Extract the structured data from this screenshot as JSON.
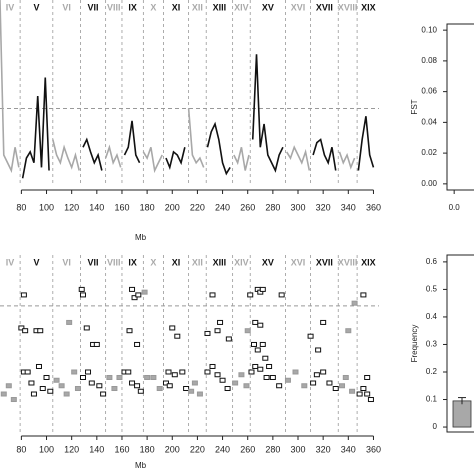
{
  "chart_data": [
    {
      "type": "line",
      "xlabel": "Mb",
      "xlim": [
        63,
        366
      ],
      "xticks": [
        80,
        100,
        120,
        140,
        160,
        180,
        200,
        220,
        240,
        260,
        280,
        300,
        320,
        340,
        360
      ],
      "ylim": [
        0,
        0.12
      ],
      "threshold": 0.05,
      "chromosomes": [
        {
          "label": "IV",
          "start": 60,
          "end": 79,
          "color": "#a8a8a8"
        },
        {
          "label": "V",
          "start": 79,
          "end": 105,
          "color": "#111111"
        },
        {
          "label": "VI",
          "start": 105,
          "end": 127,
          "color": "#a8a8a8"
        },
        {
          "label": "VII",
          "start": 127,
          "end": 147,
          "color": "#111111"
        },
        {
          "label": "VIII",
          "start": 147,
          "end": 160,
          "color": "#a8a8a8"
        },
        {
          "label": "IX",
          "start": 160,
          "end": 177,
          "color": "#111111"
        },
        {
          "label": "X",
          "start": 177,
          "end": 193,
          "color": "#a8a8a8"
        },
        {
          "label": "XI",
          "start": 193,
          "end": 213,
          "color": "#111111"
        },
        {
          "label": "XII",
          "start": 213,
          "end": 227,
          "color": "#a8a8a8"
        },
        {
          "label": "XIII",
          "start": 227,
          "end": 248,
          "color": "#111111"
        },
        {
          "label": "XIV",
          "start": 248,
          "end": 262,
          "color": "#a8a8a8"
        },
        {
          "label": "XV",
          "start": 262,
          "end": 290,
          "color": "#111111"
        },
        {
          "label": "XVI",
          "start": 290,
          "end": 310,
          "color": "#a8a8a8"
        },
        {
          "label": "XVII",
          "start": 310,
          "end": 332,
          "color": "#111111"
        },
        {
          "label": "XVIII",
          "start": 332,
          "end": 347,
          "color": "#a8a8a8"
        },
        {
          "label": "XIX",
          "start": 347,
          "end": 365,
          "color": "#111111"
        }
      ],
      "x": [
        63,
        66,
        69,
        72,
        75,
        78,
        81,
        84,
        87,
        90,
        93,
        96,
        99,
        102,
        105,
        108,
        111,
        114,
        117,
        120,
        123,
        126,
        129,
        132,
        135,
        138,
        141,
        144,
        147,
        150,
        153,
        156,
        159,
        162,
        165,
        168,
        171,
        174,
        177,
        180,
        183,
        186,
        189,
        192,
        195,
        198,
        201,
        204,
        207,
        210,
        213,
        216,
        219,
        222,
        225,
        228,
        231,
        234,
        237,
        240,
        243,
        246,
        249,
        252,
        255,
        258,
        261,
        264,
        267,
        270,
        273,
        276,
        279,
        282,
        285,
        288,
        291,
        294,
        297,
        300,
        303,
        306,
        309,
        312,
        315,
        318,
        321,
        324,
        327,
        330,
        333,
        336,
        339,
        342,
        345,
        348,
        351,
        354,
        357,
        360
      ],
      "values": [
        0.12,
        0.02,
        0.015,
        0.01,
        0.025,
        0.012,
        0.005,
        0.018,
        0.022,
        0.015,
        0.058,
        0.012,
        0.07,
        0.01,
        0.03,
        0.02,
        0.015,
        0.025,
        0.018,
        0.012,
        0.02,
        0.01,
        0.025,
        0.03,
        0.022,
        0.015,
        0.02,
        0.01,
        0.018,
        0.025,
        0.015,
        0.02,
        0.012,
        0.02,
        0.025,
        0.042,
        0.02,
        0.015,
        0.022,
        0.018,
        0.025,
        0.01,
        0.015,
        0.02,
        0.018,
        0.012,
        0.022,
        0.02,
        0.015,
        0.025,
        0.05,
        0.02,
        0.015,
        0.018,
        0.012,
        0.025,
        0.035,
        0.04,
        0.03,
        0.015,
        0.008,
        0.012,
        0.02,
        0.015,
        0.025,
        0.01,
        0.02,
        0.03,
        0.085,
        0.025,
        0.04,
        0.02,
        0.015,
        0.01,
        0.02,
        0.025,
        0.022,
        0.018,
        0.025,
        0.02,
        0.015,
        0.022,
        0.01,
        0.02,
        0.028,
        0.03,
        0.02,
        0.015,
        0.025,
        0.01,
        0.022,
        0.015,
        0.02,
        0.012,
        0.018,
        0.01,
        0.03,
        0.045,
        0.02,
        0.012
      ]
    },
    {
      "type": "scatter",
      "ylabel": "FST",
      "xlim": [
        -0.01,
        0.05
      ],
      "xticks": [
        {
          "value": 0,
          "label": "0.0"
        }
      ],
      "ylim": [
        -0.004,
        0.104
      ],
      "yticks": [
        {
          "value": 0,
          "label": "0.00"
        },
        {
          "value": 0.02,
          "label": "0.02"
        },
        {
          "value": 0.04,
          "label": "0.04"
        },
        {
          "value": 0.06,
          "label": "0.06"
        },
        {
          "value": 0.08,
          "label": "0.08"
        },
        {
          "value": 0.1,
          "label": "0.10"
        }
      ],
      "x": [],
      "y": []
    },
    {
      "type": "scatter",
      "xlabel": "Mb",
      "xlim": [
        63,
        366
      ],
      "xticks": [
        80,
        100,
        120,
        140,
        160,
        180,
        200,
        220,
        240,
        260,
        280,
        300,
        320,
        340,
        360
      ],
      "ylim": [
        -0.018,
        0.625
      ],
      "threshold": 0.44,
      "chromosomes": [
        {
          "label": "IV",
          "start": 60,
          "end": 79,
          "color": "#a8a8a8"
        },
        {
          "label": "V",
          "start": 79,
          "end": 105,
          "color": "#111111"
        },
        {
          "label": "VI",
          "start": 105,
          "end": 127,
          "color": "#a8a8a8"
        },
        {
          "label": "VII",
          "start": 127,
          "end": 147,
          "color": "#111111"
        },
        {
          "label": "VIII",
          "start": 147,
          "end": 160,
          "color": "#a8a8a8"
        },
        {
          "label": "IX",
          "start": 160,
          "end": 177,
          "color": "#111111"
        },
        {
          "label": "X",
          "start": 177,
          "end": 193,
          "color": "#a8a8a8"
        },
        {
          "label": "XI",
          "start": 193,
          "end": 213,
          "color": "#111111"
        },
        {
          "label": "XII",
          "start": 213,
          "end": 227,
          "color": "#a8a8a8"
        },
        {
          "label": "XIII",
          "start": 227,
          "end": 248,
          "color": "#111111"
        },
        {
          "label": "XIV",
          "start": 248,
          "end": 262,
          "color": "#a8a8a8"
        },
        {
          "label": "XV",
          "start": 262,
          "end": 290,
          "color": "#111111"
        },
        {
          "label": "XVI",
          "start": 290,
          "end": 310,
          "color": "#a8a8a8"
        },
        {
          "label": "XVII",
          "start": 310,
          "end": 332,
          "color": "#111111"
        },
        {
          "label": "XVIII",
          "start": 332,
          "end": 347,
          "color": "#a8a8a8"
        },
        {
          "label": "XIX",
          "start": 347,
          "end": 365,
          "color": "#111111"
        }
      ],
      "x": [
        82,
        80,
        83,
        92,
        95,
        128,
        129,
        137,
        140,
        132,
        118,
        168,
        170,
        173,
        166,
        172,
        178,
        200,
        204,
        197,
        232,
        236,
        238,
        228,
        245,
        262,
        268,
        270,
        272,
        266,
        270,
        272,
        265,
        268,
        274,
        277,
        260,
        287,
        310,
        320,
        316,
        345,
        340,
        352,
        355,
        66,
        70,
        74,
        82,
        85,
        88,
        90,
        94,
        97,
        100,
        103,
        108,
        112,
        116,
        122,
        125,
        129,
        133,
        136,
        142,
        145,
        150,
        154,
        158,
        162,
        165,
        168,
        172,
        175,
        180,
        185,
        190,
        195,
        198,
        202,
        208,
        211,
        215,
        218,
        222,
        228,
        232,
        236,
        240,
        244,
        250,
        255,
        259,
        263,
        266,
        270,
        275,
        280,
        285,
        292,
        298,
        305,
        312,
        315,
        320,
        325,
        330,
        335,
        338,
        343,
        349,
        352,
        355,
        358
      ],
      "y": [
        0.48,
        0.36,
        0.35,
        0.35,
        0.35,
        0.5,
        0.48,
        0.3,
        0.3,
        0.36,
        0.38,
        0.5,
        0.47,
        0.48,
        0.35,
        0.3,
        0.49,
        0.36,
        0.33,
        0.2,
        0.48,
        0.35,
        0.38,
        0.34,
        0.32,
        0.48,
        0.5,
        0.49,
        0.5,
        0.38,
        0.37,
        0.3,
        0.3,
        0.28,
        0.25,
        0.22,
        0.35,
        0.48,
        0.33,
        0.38,
        0.28,
        0.45,
        0.35,
        0.48,
        0.18,
        0.12,
        0.15,
        0.1,
        0.2,
        0.2,
        0.16,
        0.12,
        0.22,
        0.14,
        0.18,
        0.13,
        0.17,
        0.15,
        0.12,
        0.2,
        0.14,
        0.18,
        0.2,
        0.16,
        0.15,
        0.12,
        0.18,
        0.14,
        0.18,
        0.2,
        0.2,
        0.16,
        0.15,
        0.13,
        0.18,
        0.18,
        0.14,
        0.16,
        0.15,
        0.19,
        0.2,
        0.14,
        0.13,
        0.16,
        0.12,
        0.2,
        0.22,
        0.19,
        0.17,
        0.14,
        0.16,
        0.19,
        0.15,
        0.2,
        0.22,
        0.21,
        0.18,
        0.18,
        0.15,
        0.17,
        0.2,
        0.15,
        0.16,
        0.19,
        0.2,
        0.16,
        0.14,
        0.15,
        0.18,
        0.13,
        0.12,
        0.14,
        0.12,
        0.1
      ]
    },
    {
      "type": "bar",
      "ylabel": "Frequency",
      "ylim": [
        -0.018,
        0.625
      ],
      "yticks": [
        0,
        0.1,
        0.2,
        0.3,
        0.4,
        0.5,
        0.6
      ],
      "values": [
        0.095
      ],
      "errors": [
        0.012
      ],
      "color": "#a8a8a8"
    }
  ]
}
